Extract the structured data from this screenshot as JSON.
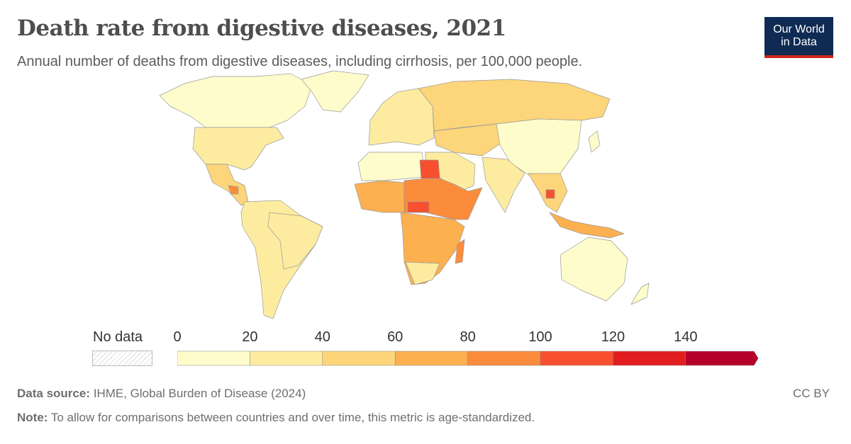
{
  "header": {
    "title": "Death rate from digestive diseases, 2021",
    "subtitle": "Annual number of deaths from digestive diseases, including cirrhosis, per 100,000 people.",
    "logo_line1": "Our World",
    "logo_line2": "in Data"
  },
  "legend": {
    "no_data_label": "No data",
    "ticks": [
      "0",
      "20",
      "40",
      "60",
      "80",
      "100",
      "120",
      "140"
    ],
    "bins": [
      {
        "min": 0,
        "max": 20,
        "color": "#fefccb"
      },
      {
        "min": 20,
        "max": 40,
        "color": "#fdeca0"
      },
      {
        "min": 40,
        "max": 60,
        "color": "#fdd57a"
      },
      {
        "min": 60,
        "max": 80,
        "color": "#fcb050"
      },
      {
        "min": 80,
        "max": 100,
        "color": "#fb8c3c"
      },
      {
        "min": 100,
        "max": 120,
        "color": "#f84f2f"
      },
      {
        "min": 120,
        "max": 140,
        "color": "#e21d1f"
      },
      {
        "min": 140,
        "max": null,
        "color": "#b5002b"
      }
    ]
  },
  "footer": {
    "source_label": "Data source:",
    "source_text": "IHME, Global Burden of Disease (2024)",
    "note_label": "Note:",
    "note_text": "To allow for comparisons between countries and over time, this metric is age-standardized.",
    "license": "CC BY"
  }
}
